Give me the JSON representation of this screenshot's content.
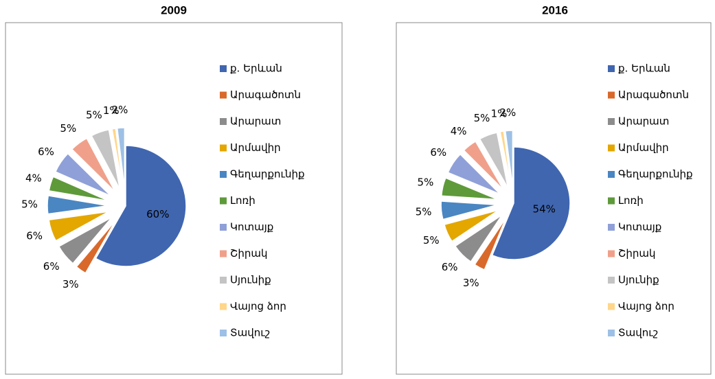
{
  "chart_data": [
    {
      "type": "pie",
      "title": "2009",
      "categories": [
        "ք. Երևան",
        "Արագածոտն",
        "Արարատ",
        "Արմավիր",
        "Գեղարքունիք",
        "Լոռի",
        "Կոտայք",
        "Շիրակ",
        "Սյունիք",
        "Վայոց ձոր",
        "Տավուշ"
      ],
      "values": [
        60,
        3,
        6,
        6,
        5,
        4,
        6,
        5,
        5,
        1,
        2
      ],
      "value_labels": [
        "60%",
        "3%",
        "6%",
        "6%",
        "5%",
        "4%",
        "6%",
        "5%",
        "5%",
        "1%",
        "2%"
      ],
      "colors": [
        "#4066b0",
        "#d9692b",
        "#8c8c8c",
        "#e3a700",
        "#4a86c2",
        "#5e9a3a",
        "#8fa0d8",
        "#f0a08a",
        "#c4c4c4",
        "#ffd68a",
        "#9dc0e6"
      ]
    },
    {
      "type": "pie",
      "title": "2016",
      "categories": [
        "ք. Երևան",
        "Արագածոտն",
        "Արարատ",
        "Արմավիր",
        "Գեղարքունիք",
        "Լոռի",
        "Կոտայք",
        "Շիրակ",
        "Սյունիք",
        "Վայոց ձոր",
        "Տավուշ"
      ],
      "values": [
        54,
        3,
        6,
        5,
        5,
        5,
        6,
        4,
        5,
        1,
        2
      ],
      "value_labels": [
        "54%",
        "3%",
        "6%",
        "5%",
        "5%",
        "5%",
        "6%",
        "4%",
        "5%",
        "1%",
        "2%"
      ],
      "colors": [
        "#4066b0",
        "#d9692b",
        "#8c8c8c",
        "#e3a700",
        "#4a86c2",
        "#5e9a3a",
        "#8fa0d8",
        "#f0a08a",
        "#c4c4c4",
        "#ffd68a",
        "#9dc0e6"
      ]
    }
  ]
}
